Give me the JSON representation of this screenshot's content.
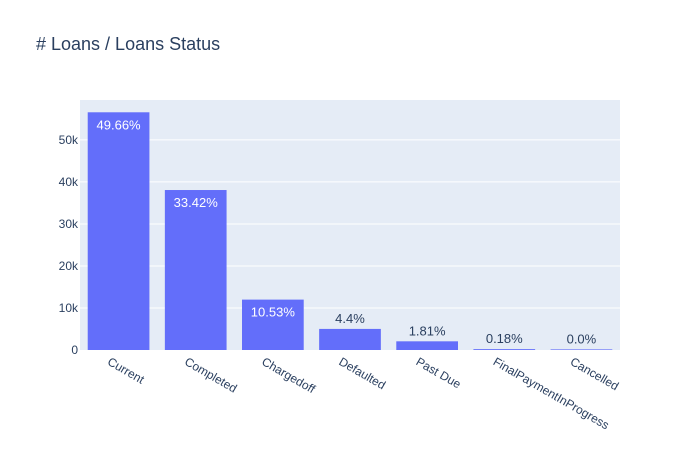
{
  "chart_data": {
    "type": "bar",
    "title": "# Loans / Loans Status",
    "xlabel": "",
    "ylabel": "",
    "categories": [
      "Current",
      "Completed",
      "Chargedoff",
      "Defaulted",
      "Past Due",
      "FinalPaymentInProgress",
      "Cancelled"
    ],
    "values": [
      56576,
      38074,
      11992,
      5018,
      2067,
      205,
      5
    ],
    "data_labels": [
      "49.66%",
      "33.42%",
      "10.53%",
      "4.4%",
      "1.81%",
      "0.18%",
      "0.0%"
    ],
    "ylim": [
      0,
      59500
    ],
    "y_ticks": [
      0,
      10000,
      20000,
      30000,
      40000,
      50000
    ],
    "y_tick_labels": [
      "0",
      "10k",
      "20k",
      "30k",
      "40k",
      "50k"
    ],
    "grid": true,
    "legend": "none",
    "colors": {
      "bar": "#636efa",
      "plot_background": "#e5ecf6",
      "grid": "#ffffff",
      "text": "#2a3f5f",
      "label_inside": "#ffffff"
    }
  }
}
